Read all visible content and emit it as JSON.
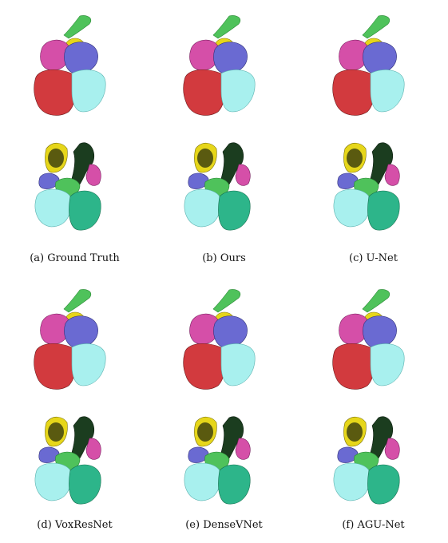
{
  "panels": [
    {
      "id": "a",
      "caption": "(a) Ground Truth",
      "method": "Ground Truth"
    },
    {
      "id": "b",
      "caption": "(b) Ours",
      "method": "Ours"
    },
    {
      "id": "c",
      "caption": "(c) U-Net",
      "method": "U-Net"
    },
    {
      "id": "d",
      "caption": "(d) VoxResNet",
      "method": "VoxResNet"
    },
    {
      "id": "e",
      "caption": "(e) DenseVNet",
      "method": "DenseVNet"
    },
    {
      "id": "f",
      "caption": "(f) AGU-Net",
      "method": "AGU-Net"
    }
  ],
  "colors": {
    "left_ventricle": "#d23a3e",
    "right_ventricle": "#a8f0ee",
    "left_atrium": "#d54fa8",
    "right_atrium": "#6a6ad2",
    "aorta": "#e6d61a",
    "pulmonary_artery": "#4fc25b",
    "myocardium": "#1b3d1f",
    "rv_green": "#2db58a"
  }
}
